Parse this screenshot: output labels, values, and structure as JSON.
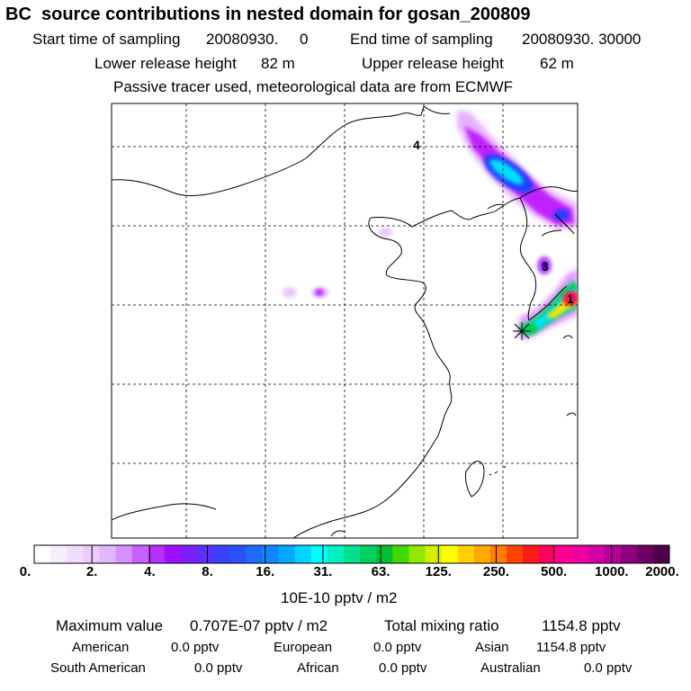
{
  "header": {
    "title": "BC  source contributions in nested domain for gosan_200809",
    "start_label": "Start time of sampling",
    "start_value": "20080930.     0",
    "end_label": "End time of sampling",
    "end_value": "20080930. 30000",
    "lower_label": "Lower release height",
    "lower_value": "82 m",
    "upper_label": "Upper release height",
    "upper_value": "62 m",
    "note": "Passive tracer used, meteorological data are from ECMWF"
  },
  "map": {
    "markers": [
      "4",
      "3",
      "1"
    ],
    "colors": {
      "low": "#e9c7ff",
      "purple": "#c020ff",
      "blue": "#2040ff",
      "cyan": "#00e0ff",
      "green": "#00d060",
      "yellow": "#ffe000",
      "red": "#ff2020",
      "magenta": "#ff0090"
    }
  },
  "colorbar": {
    "swatches": [
      "#ffffff",
      "#f8ecff",
      "#f2dcff",
      "#ebcbff",
      "#e3b6ff",
      "#d890ff",
      "#c860ff",
      "#b830ff",
      "#a010ff",
      "#7a20ff",
      "#5a30ff",
      "#3a40ff",
      "#2a50ff",
      "#1c6cff",
      "#0e88ff",
      "#00a8ff",
      "#00d4ff",
      "#00ffff",
      "#00f0c0",
      "#00e090",
      "#00d060",
      "#00c030",
      "#40d800",
      "#90e800",
      "#d0f000",
      "#ffff00",
      "#ffd000",
      "#ffa800",
      "#ff7c00",
      "#ff4400",
      "#ff1a1a",
      "#ff0060",
      "#ff0090",
      "#ee00a0",
      "#d600a8",
      "#b40098",
      "#8e0080",
      "#6a0062",
      "#50004a"
    ],
    "ticks": [
      "0.",
      "2.",
      "4.",
      "8.",
      "16.",
      "31.",
      "63.",
      "125.",
      "250.",
      "500.",
      "1000.",
      "2000."
    ],
    "unit": "10E-10 pptv / m2"
  },
  "footer": {
    "max_label": "Maximum value",
    "max_value": "0.707E-07 pptv / m2",
    "total_label": "Total mixing ratio",
    "total_value": "1154.8 pptv",
    "regions": [
      {
        "name": "American",
        "value": "0.0 pptv"
      },
      {
        "name": "European",
        "value": "0.0 pptv"
      },
      {
        "name": "Asian",
        "value": "1154.8 pptv"
      },
      {
        "name": "South American",
        "value": "0.0 pptv"
      },
      {
        "name": "African",
        "value": "0.0 pptv"
      },
      {
        "name": "Australian",
        "value": "0.0 pptv"
      }
    ]
  }
}
